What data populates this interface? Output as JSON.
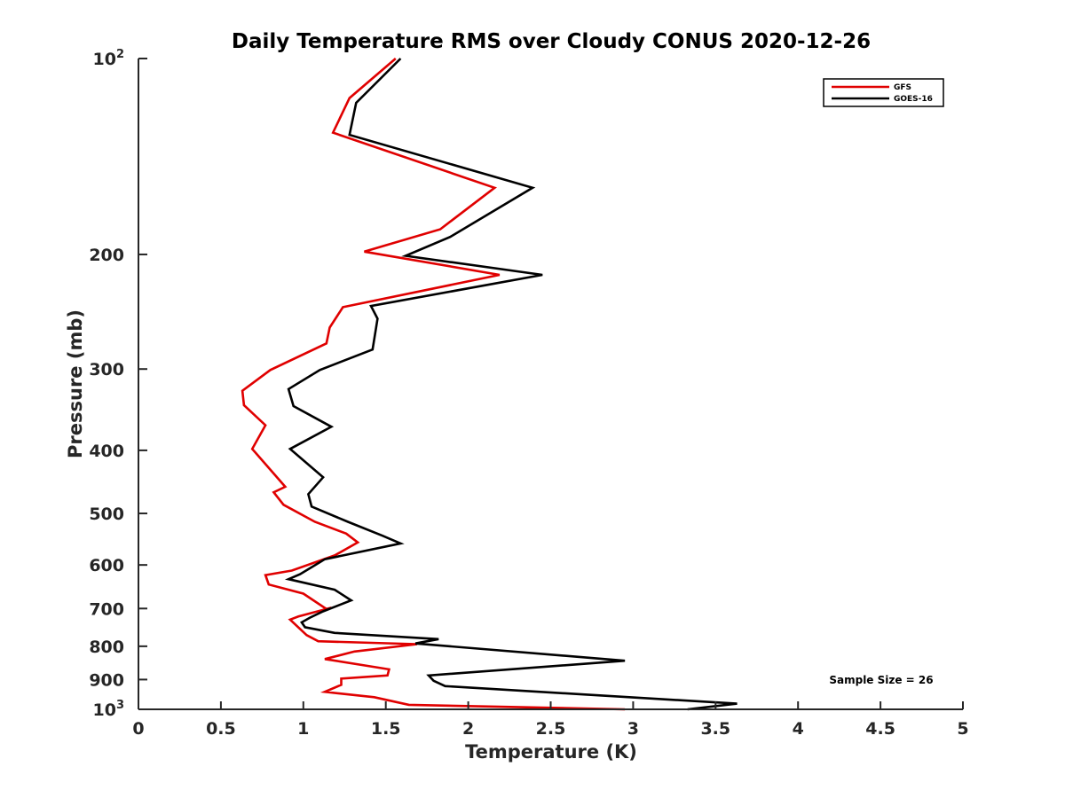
{
  "chart_data": {
    "type": "line",
    "title": "Daily Temperature RMS over Cloudy CONUS 2020-12-26",
    "xlabel": "Temperature (K)",
    "ylabel": "Pressure (mb)",
    "xlim": [
      0,
      5
    ],
    "ylim": [
      100,
      1000
    ],
    "y_scale": "log",
    "y_reversed": true,
    "grid": false,
    "legend_position": "top-right",
    "x_ticks": [
      "0",
      "0.5",
      "1",
      "1.5",
      "2",
      "2.5",
      "3",
      "3.5",
      "4",
      "4.5",
      "5"
    ],
    "y_ticks": [
      {
        "value": 100,
        "base": "10",
        "exp": "2"
      },
      {
        "value": 200,
        "base": "200",
        "exp": ""
      },
      {
        "value": 300,
        "base": "300",
        "exp": ""
      },
      {
        "value": 400,
        "base": "400",
        "exp": ""
      },
      {
        "value": 500,
        "base": "500",
        "exp": ""
      },
      {
        "value": 600,
        "base": "600",
        "exp": ""
      },
      {
        "value": 700,
        "base": "700",
        "exp": ""
      },
      {
        "value": 800,
        "base": "800",
        "exp": ""
      },
      {
        "value": 900,
        "base": "900",
        "exp": ""
      },
      {
        "value": 1000,
        "base": "10",
        "exp": "3"
      }
    ],
    "annotation": "Sample Size = 26",
    "series": [
      {
        "name": "GFS",
        "color": "#e00000",
        "points": [
          [
            1.56,
            100
          ],
          [
            1.28,
            115
          ],
          [
            1.18,
            130
          ],
          [
            2.16,
            158
          ],
          [
            1.83,
            183
          ],
          [
            1.37,
            198
          ],
          [
            2.19,
            215
          ],
          [
            1.24,
            241
          ],
          [
            1.16,
            259
          ],
          [
            1.14,
            274
          ],
          [
            0.8,
            301
          ],
          [
            0.63,
            324
          ],
          [
            0.64,
            341
          ],
          [
            0.77,
            366
          ],
          [
            0.69,
            398
          ],
          [
            0.89,
            455
          ],
          [
            0.82,
            464
          ],
          [
            0.88,
            485
          ],
          [
            1.07,
            515
          ],
          [
            1.26,
            537
          ],
          [
            1.33,
            554
          ],
          [
            1.19,
            580
          ],
          [
            0.93,
            612
          ],
          [
            0.77,
            622
          ],
          [
            0.79,
            643
          ],
          [
            1.0,
            664
          ],
          [
            1.14,
            701
          ],
          [
            1.17,
            698
          ],
          [
            0.97,
            720
          ],
          [
            0.92,
            728
          ],
          [
            1.02,
            769
          ],
          [
            1.09,
            786
          ],
          [
            1.69,
            794
          ],
          [
            1.31,
            815
          ],
          [
            1.13,
            837
          ],
          [
            1.52,
            868
          ],
          [
            1.51,
            887
          ],
          [
            1.23,
            897
          ],
          [
            1.23,
            917
          ],
          [
            1.13,
            940
          ],
          [
            1.43,
            958
          ],
          [
            1.64,
            984
          ],
          [
            2.95,
            1000
          ]
        ]
      },
      {
        "name": "GOES-16",
        "color": "#000000",
        "points": [
          [
            1.59,
            100
          ],
          [
            1.32,
            117
          ],
          [
            1.28,
            131
          ],
          [
            2.39,
            158
          ],
          [
            1.89,
            188
          ],
          [
            1.62,
            201
          ],
          [
            2.45,
            215
          ],
          [
            1.41,
            240
          ],
          [
            1.45,
            251
          ],
          [
            1.42,
            280
          ],
          [
            1.1,
            301
          ],
          [
            0.91,
            322
          ],
          [
            0.94,
            342
          ],
          [
            1.17,
            368
          ],
          [
            0.92,
            398
          ],
          [
            1.12,
            440
          ],
          [
            1.03,
            467
          ],
          [
            1.05,
            488
          ],
          [
            1.27,
            515
          ],
          [
            1.48,
            541
          ],
          [
            1.59,
            556
          ],
          [
            1.13,
            588
          ],
          [
            0.98,
            620
          ],
          [
            0.91,
            631
          ],
          [
            1.19,
            655
          ],
          [
            1.29,
            680
          ],
          [
            1.12,
            707
          ],
          [
            1.04,
            723
          ],
          [
            0.99,
            735
          ],
          [
            1.01,
            748
          ],
          [
            1.19,
            763
          ],
          [
            1.82,
            780
          ],
          [
            1.68,
            792
          ],
          [
            2.95,
            842
          ],
          [
            1.76,
            887
          ],
          [
            1.79,
            904
          ],
          [
            1.86,
            921
          ],
          [
            2.71,
            949
          ],
          [
            3.63,
            980
          ],
          [
            3.33,
            1000
          ]
        ]
      }
    ]
  }
}
